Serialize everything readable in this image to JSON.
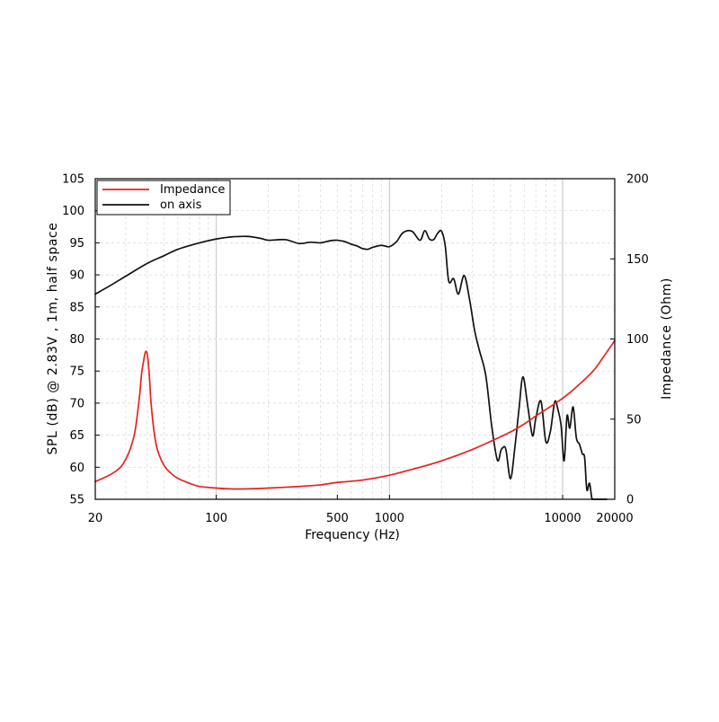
{
  "chart_data": {
    "type": "line",
    "title": "",
    "xlabel": "Frequency (Hz)",
    "ylabel": "SPL (dB) @ 2.83V , 1m, half space",
    "ylabel_right": "Impedance (Ohm)",
    "x_scale": "log",
    "xlim": [
      20,
      20000
    ],
    "ylim": [
      55,
      105
    ],
    "ylim_right": [
      0,
      200
    ],
    "x_ticks": [
      20,
      100,
      500,
      1000,
      10000,
      20000
    ],
    "x_tick_labels": [
      "20",
      "100",
      "500",
      "1000",
      "10000",
      "20000"
    ],
    "y_ticks": [
      55,
      60,
      65,
      70,
      75,
      80,
      85,
      90,
      95,
      100,
      105
    ],
    "y_tick_labels": [
      "55",
      "60",
      "65",
      "70",
      "75",
      "80",
      "85",
      "90",
      "95",
      "100",
      "105"
    ],
    "y_right_ticks": [
      0,
      50,
      100,
      150,
      200
    ],
    "y_right_tick_labels": [
      "0",
      "50",
      "100",
      "150",
      "200"
    ],
    "grid": true,
    "legend_position": "top-left",
    "series": [
      {
        "name": "Impedance",
        "axis": "right",
        "color": "#e8211c",
        "x": [
          20,
          22,
          25,
          28,
          30,
          32,
          34,
          36,
          37,
          38,
          39,
          40,
          41,
          42,
          44,
          46,
          50,
          55,
          60,
          70,
          80,
          100,
          120,
          150,
          200,
          300,
          400,
          500,
          700,
          1000,
          1500,
          2000,
          3000,
          4000,
          5000,
          6000,
          7000,
          8000,
          10000,
          12000,
          15000,
          17000,
          20000
        ],
        "y": [
          11,
          13,
          16,
          20,
          25,
          32,
          43,
          64,
          78,
          86,
          92,
          90,
          78,
          60,
          40,
          30,
          21,
          16,
          13,
          10,
          8,
          7,
          6.5,
          6.5,
          7,
          8,
          9,
          10.5,
          12,
          15,
          20,
          24,
          31,
          37,
          42,
          47,
          52,
          56,
          63,
          70,
          80,
          88,
          99
        ]
      },
      {
        "name": "on axis",
        "axis": "left",
        "color": "#111111",
        "x": [
          20,
          25,
          30,
          40,
          50,
          60,
          80,
          100,
          120,
          150,
          180,
          200,
          250,
          300,
          350,
          400,
          450,
          500,
          550,
          600,
          650,
          700,
          750,
          800,
          900,
          1000,
          1100,
          1200,
          1350,
          1500,
          1600,
          1700,
          1800,
          1900,
          2000,
          2100,
          2200,
          2350,
          2500,
          2700,
          2900,
          3100,
          3300,
          3600,
          3900,
          4200,
          4400,
          4500,
          4700,
          5000,
          5300,
          5600,
          5900,
          6300,
          6700,
          7000,
          7500,
          8000,
          8500,
          9000,
          9400,
          9800,
          10200,
          10600,
          11000,
          11500,
          12000,
          12500,
          13000,
          13400,
          13800,
          14300,
          14800,
          15400,
          16000,
          17000,
          18000
        ],
        "y": [
          87,
          88.5,
          89.8,
          91.8,
          93,
          94,
          95,
          95.6,
          95.9,
          96,
          95.7,
          95.4,
          95.5,
          94.9,
          95.1,
          95.0,
          95.3,
          95.4,
          95.2,
          94.8,
          94.5,
          94.1,
          94.0,
          94.3,
          94.6,
          94.4,
          95.2,
          96.6,
          96.8,
          95.4,
          96.9,
          95.6,
          95.5,
          96.5,
          96.8,
          94.5,
          89.0,
          89.4,
          87.0,
          89.9,
          86.2,
          81.4,
          78.3,
          74.3,
          66.3,
          61.1,
          62.6,
          63.0,
          62.8,
          58.2,
          63.1,
          69.1,
          74.1,
          69.4,
          64.9,
          67.6,
          70.3,
          64.0,
          65.6,
          70.2,
          69.0,
          66.5,
          61.0,
          68.0,
          66.1,
          69.4,
          64.6,
          63.6,
          62.1,
          61.5,
          56.5,
          57.5,
          55.0,
          55.0,
          55.0,
          55.0,
          55.0
        ]
      }
    ]
  }
}
